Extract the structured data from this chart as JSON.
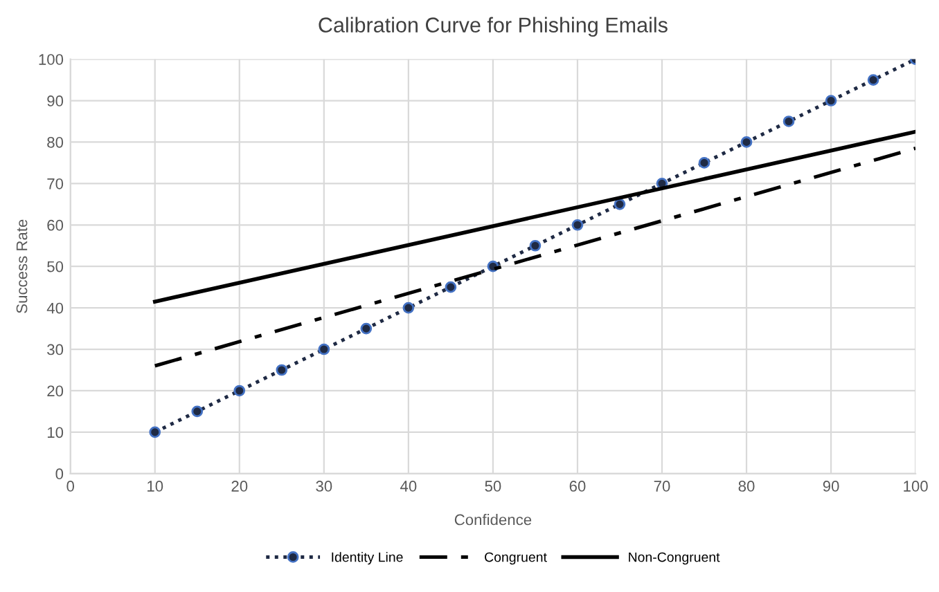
{
  "chart_data": {
    "type": "line",
    "title": "Calibration Curve for Phishing Emails",
    "xlabel": "Confidence",
    "ylabel": "Success Rate",
    "xlim": [
      0,
      100
    ],
    "xticks": [
      0,
      10,
      20,
      30,
      40,
      50,
      60,
      70,
      80,
      90,
      100
    ],
    "ylim": [
      0,
      100
    ],
    "yticks": [
      0,
      10,
      20,
      30,
      40,
      50,
      60,
      70,
      80,
      90,
      100
    ],
    "grid": true,
    "legend": "bottom",
    "series": [
      {
        "name": "Identity Line",
        "color": "#1f2a44",
        "marker": "circle",
        "line_style": "dotted",
        "x": [
          10,
          15,
          20,
          25,
          30,
          35,
          40,
          45,
          50,
          55,
          60,
          65,
          70,
          75,
          80,
          85,
          90,
          95,
          100
        ],
        "values": [
          10,
          15,
          20,
          25,
          30,
          35,
          40,
          45,
          50,
          55,
          60,
          65,
          70,
          75,
          80,
          85,
          90,
          95,
          100
        ]
      },
      {
        "name": "Congruent",
        "color": "#000000",
        "marker": "none",
        "line_style": "dashdot",
        "x": [
          10,
          100
        ],
        "values": [
          26,
          78.5
        ]
      },
      {
        "name": "Non-Congruent",
        "color": "#000000",
        "marker": "none",
        "line_style": "solid",
        "x": [
          10,
          100
        ],
        "values": [
          41.5,
          82.5
        ]
      }
    ]
  }
}
